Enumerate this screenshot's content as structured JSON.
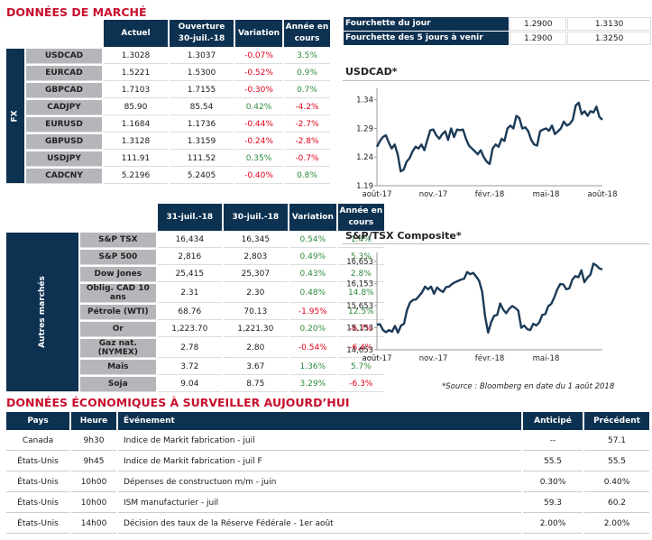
{
  "market": {
    "title": "DONNÉES DE MARCHÉ",
    "fx": {
      "side_label": "FX",
      "headers": [
        "Actuel",
        "Ouverture 30-juil.-18",
        "Variation",
        "Année en cours"
      ],
      "rows": [
        {
          "name": "USDCAD",
          "current": "1.3028",
          "open": "1.3037",
          "change": "-0.07%",
          "ytd": "3.5%"
        },
        {
          "name": "EURCAD",
          "current": "1.5221",
          "open": "1.5300",
          "change": "-0.52%",
          "ytd": "0.9%"
        },
        {
          "name": "GBPCAD",
          "current": "1.7103",
          "open": "1.7155",
          "change": "-0.30%",
          "ytd": "0.7%"
        },
        {
          "name": "CADJPY",
          "current": "85.90",
          "open": "85.54",
          "change": "0.42%",
          "ytd": "-4.2%"
        },
        {
          "name": "EURUSD",
          "current": "1.1684",
          "open": "1.1736",
          "change": "-0.44%",
          "ytd": "-2.7%"
        },
        {
          "name": "GBPUSD",
          "current": "1.3128",
          "open": "1.3159",
          "change": "-0.24%",
          "ytd": "-2.8%"
        },
        {
          "name": "USDJPY",
          "current": "111.91",
          "open": "111.52",
          "change": "0.35%",
          "ytd": "-0.7%"
        },
        {
          "name": "CADCNY",
          "current": "5.2196",
          "open": "5.2405",
          "change": "-0.40%",
          "ytd": "0.8%"
        }
      ]
    },
    "other": {
      "side_label": "Autres marchés",
      "headers": [
        "31-juil.-18",
        "30-juil.-18",
        "Variation",
        "Année en cours"
      ],
      "rows": [
        {
          "name": "S&P TSX",
          "current": "16,434",
          "open": "16,345",
          "change": "0.54%",
          "ytd": "1.4%"
        },
        {
          "name": "S&P 500",
          "current": "2,816",
          "open": "2,803",
          "change": "0.49%",
          "ytd": "5.3%"
        },
        {
          "name": "Dow Jones",
          "current": "25,415",
          "open": "25,307",
          "change": "0.43%",
          "ytd": "2.8%"
        },
        {
          "name": "Oblig. CAD 10 ans",
          "current": "2.31",
          "open": "2.30",
          "change": "0.48%",
          "ytd": "14.8%"
        },
        {
          "name": "Pétrole (WTI)",
          "current": "68.76",
          "open": "70.13",
          "change": "-1.95%",
          "ytd": "12.5%"
        },
        {
          "name": "Or",
          "current": "1,223.70",
          "open": "1,221.30",
          "change": "0.20%",
          "ytd": "-6.7%"
        },
        {
          "name": "Gaz nat. (NYMEX)",
          "current": "2.78",
          "open": "2.80",
          "change": "-0.54%",
          "ytd": "-6.4%"
        },
        {
          "name": "Maïs",
          "current": "3.72",
          "open": "3.67",
          "change": "1.36%",
          "ytd": "5.7%"
        },
        {
          "name": "Soja",
          "current": "9.04",
          "open": "8.75",
          "change": "3.29%",
          "ytd": "-6.3%"
        }
      ]
    }
  },
  "ranges": [
    {
      "label": "Fourchette du jour",
      "low": "1.2900",
      "high": "1.3130"
    },
    {
      "label": "Fourchette des 5 jours à venir",
      "low": "1.2900",
      "high": "1.3250"
    }
  ],
  "colors": {
    "navy": "#0d3150",
    "red": "#c8102e",
    "positive": "#2e8b3d",
    "negative": "#e1001a",
    "label_bg": "#b4b6ba"
  },
  "chart_data": [
    {
      "type": "line",
      "title": "USDCAD*",
      "xlabel": "",
      "ylabel": "",
      "x_ticks": [
        "août-17",
        "nov.-17",
        "févr.-18",
        "mai-18",
        "août-18"
      ],
      "y_ticks": [
        "1.19",
        "1.24",
        "1.29",
        "1.34"
      ],
      "ylim": [
        1.19,
        1.36
      ],
      "grid": false,
      "series": [
        {
          "name": "USDCAD",
          "values": [
            1.258,
            1.268,
            1.275,
            1.278,
            1.265,
            1.255,
            1.262,
            1.245,
            1.215,
            1.218,
            1.232,
            1.238,
            1.25,
            1.258,
            1.255,
            1.262,
            1.252,
            1.27,
            1.287,
            1.288,
            1.278,
            1.272,
            1.28,
            1.285,
            1.27,
            1.29,
            1.275,
            1.288,
            1.287,
            1.288,
            1.272,
            1.26,
            1.255,
            1.25,
            1.245,
            1.252,
            1.24,
            1.232,
            1.228,
            1.255,
            1.262,
            1.258,
            1.272,
            1.268,
            1.29,
            1.295,
            1.29,
            1.312,
            1.308,
            1.29,
            1.292,
            1.285,
            1.27,
            1.262,
            1.26,
            1.285,
            1.288,
            1.29,
            1.286,
            1.295,
            1.28,
            1.285,
            1.29,
            1.302,
            1.295,
            1.298,
            1.305,
            1.33,
            1.335,
            1.315,
            1.32,
            1.312,
            1.32,
            1.318,
            1.328,
            1.31,
            1.305
          ]
        }
      ]
    },
    {
      "type": "line",
      "title": "S&P/TSX Composite*",
      "xlabel": "",
      "ylabel": "",
      "x_ticks": [
        "août-17",
        "nov.-17",
        "févr.-18",
        "mai-18"
      ],
      "y_ticks": [
        "14,653",
        "15,153",
        "15,653",
        "16,153",
        "16,653"
      ],
      "ylim": [
        14653,
        16853
      ],
      "grid": false,
      "series": [
        {
          "name": "S&P/TSX",
          "values": [
            15220,
            15230,
            15100,
            15050,
            15100,
            15060,
            15190,
            15040,
            15200,
            15240,
            15550,
            15720,
            15780,
            15790,
            15870,
            15950,
            16080,
            16020,
            16080,
            15920,
            16060,
            16000,
            15960,
            16070,
            16080,
            16140,
            16180,
            16210,
            16240,
            16260,
            16410,
            16360,
            16390,
            16310,
            16210,
            15960,
            15400,
            15040,
            15280,
            15420,
            15440,
            15700,
            15560,
            15480,
            15580,
            15640,
            15600,
            15540,
            15150,
            15200,
            15120,
            15100,
            15240,
            15200,
            15270,
            15440,
            15460,
            15640,
            15690,
            15840,
            16020,
            16140,
            16130,
            16020,
            16040,
            16240,
            16320,
            16290,
            16450,
            16180,
            16280,
            16350,
            16600,
            16560,
            16490,
            16470
          ]
        }
      ]
    }
  ],
  "source_note": "*Source : Bloomberg en date du  1 août 2018",
  "economic": {
    "title": "DONNÉES ÉCONOMIQUES À SURVEILLER AUJOURD’HUI",
    "headers": [
      "Pays",
      "Heure",
      "Événement",
      "Anticipé",
      "Précédent"
    ],
    "rows": [
      {
        "country": "Canada",
        "time": "9h30",
        "event": "Indice de Markit fabrication - juil",
        "expected": "--",
        "previous": "57.1"
      },
      {
        "country": "États-Unis",
        "time": "9h45",
        "event": "Indice de Markit fabrication - juil F",
        "expected": "55.5",
        "previous": "55.5"
      },
      {
        "country": "États-Unis",
        "time": "10h00",
        "event": "Dépenses de constructuon m/m - juin",
        "expected": "0.30%",
        "previous": "0.40%"
      },
      {
        "country": "États-Unis",
        "time": "10h00",
        "event": "ISM manufacturier - juil",
        "expected": "59.3",
        "previous": "60.2"
      },
      {
        "country": "États-Unis",
        "time": "14h00",
        "event": "Décision des taux de la Réserve Fédérale - 1er août",
        "expected": "2.00%",
        "previous": "2.00%"
      }
    ]
  }
}
